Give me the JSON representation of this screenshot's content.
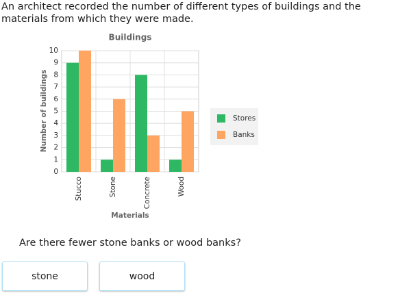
{
  "intro": "An architect recorded the number of different types of buildings and the materials from which they were made.",
  "chart_data": {
    "type": "bar",
    "title": "Buildings",
    "x_label": "Materials",
    "y_label": "Number of buildings",
    "categories": [
      "Stucco",
      "Stone",
      "Concrete",
      "Wood"
    ],
    "series": [
      {
        "name": "Stores",
        "color": "#2fb864",
        "values": [
          9,
          1,
          8,
          1
        ]
      },
      {
        "name": "Banks",
        "color": "#ffa562",
        "values": [
          10,
          6,
          3,
          5
        ]
      }
    ],
    "ylim": [
      0,
      10
    ],
    "yticks": [
      0,
      1,
      2,
      3,
      4,
      5,
      6,
      7,
      8,
      9,
      10
    ],
    "grid": true,
    "legend": "right"
  },
  "question": "Are there fewer stone banks or wood banks?",
  "options": [
    "stone",
    "wood"
  ]
}
